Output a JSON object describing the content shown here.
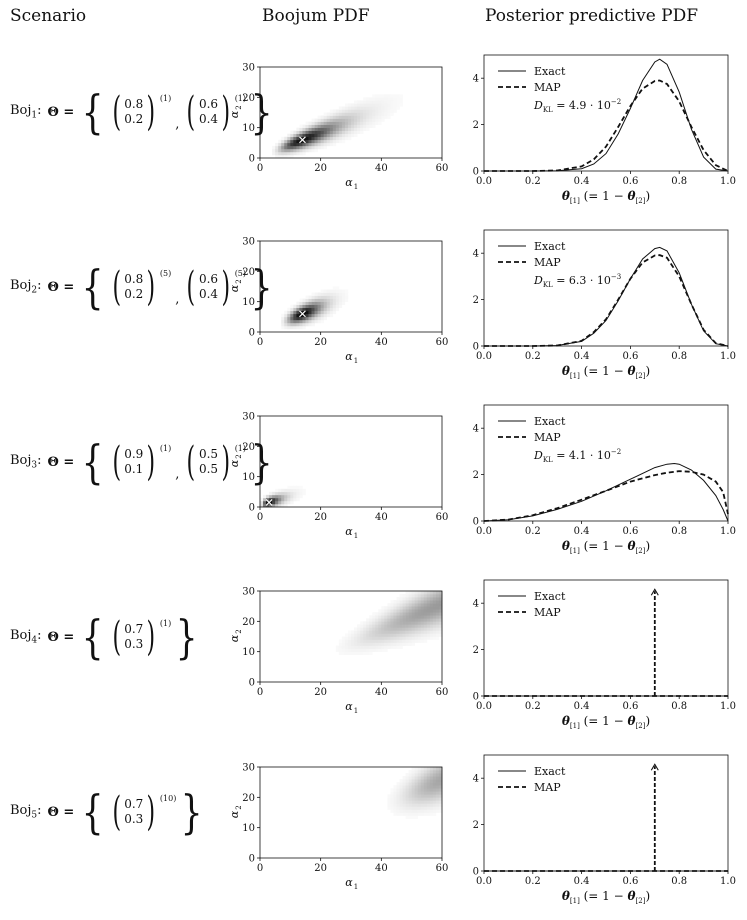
{
  "headers": {
    "scenario": "Scenario",
    "boojum": "Boojum PDF",
    "posterior": "Posterior predictive PDF"
  },
  "axes_text": {
    "heat_xlabel": "α",
    "heat_xsub": "1",
    "heat_ylabel": "α",
    "heat_ysub": "2",
    "post_xlabel_theta": "θ",
    "post_xlabel_sub": "[1]",
    "post_xlabel_mid": "(= 1 − ",
    "post_xlabel_end": ")",
    "post_xlabel_sub2": "[2]",
    "legend_exact": "Exact",
    "legend_map": "MAP"
  },
  "scenarios": [
    {
      "label": "Boj",
      "sub": "1",
      "theta": "Θ =",
      "vectors": [
        {
          "a": "0.8",
          "b": "0.2",
          "pow": "(1)"
        },
        {
          "a": "0.6",
          "b": "0.4",
          "pow": "(1)"
        }
      ]
    },
    {
      "label": "Boj",
      "sub": "2",
      "theta": "Θ =",
      "vectors": [
        {
          "a": "0.8",
          "b": "0.2",
          "pow": "(5)"
        },
        {
          "a": "0.6",
          "b": "0.4",
          "pow": "(5)"
        }
      ]
    },
    {
      "label": "Boj",
      "sub": "3",
      "theta": "Θ =",
      "vectors": [
        {
          "a": "0.9",
          "b": "0.1",
          "pow": "(1)"
        },
        {
          "a": "0.5",
          "b": "0.5",
          "pow": "(1)"
        }
      ]
    },
    {
      "label": "Boj",
      "sub": "4",
      "theta": "Θ =",
      "vectors": [
        {
          "a": "0.7",
          "b": "0.3",
          "pow": "(1)"
        }
      ]
    },
    {
      "label": "Boj",
      "sub": "5",
      "theta": "Θ =",
      "vectors": [
        {
          "a": "0.7",
          "b": "0.3",
          "pow": "(10)"
        }
      ]
    }
  ],
  "chart_data": [
    {
      "type": "heatmap",
      "xlim": [
        0,
        60
      ],
      "ylim": [
        0,
        30
      ],
      "xticks": [
        0,
        20,
        40,
        60
      ],
      "yticks": [
        0,
        10,
        20,
        30
      ],
      "map_marker": [
        14,
        6
      ],
      "ridge_slope": 0.4,
      "ridge_intercept": 0.4,
      "peak": [
        14,
        6
      ],
      "spread": 0.42,
      "intensity": 0.95
    },
    {
      "type": "heatmap",
      "xlim": [
        0,
        60
      ],
      "ylim": [
        0,
        30
      ],
      "xticks": [
        0,
        20,
        40,
        60
      ],
      "yticks": [
        0,
        10,
        20,
        30
      ],
      "map_marker": [
        14,
        6
      ],
      "ridge_slope": 0.4,
      "ridge_intercept": 0.4,
      "peak": [
        14,
        6
      ],
      "spread": 0.25,
      "intensity": 1.0
    },
    {
      "type": "heatmap",
      "xlim": [
        0,
        60
      ],
      "ylim": [
        0,
        30
      ],
      "xticks": [
        0,
        20,
        40,
        60
      ],
      "yticks": [
        0,
        10,
        20,
        30
      ],
      "map_marker": [
        3,
        1.5
      ],
      "ridge_slope": 0.3,
      "ridge_intercept": 0.7,
      "peak": [
        3,
        1.5
      ],
      "spread": 0.5,
      "intensity": 1.0
    },
    {
      "type": "heatmap",
      "xlim": [
        0,
        60
      ],
      "ylim": [
        0,
        30
      ],
      "xticks": [
        0,
        20,
        40,
        60
      ],
      "yticks": [
        0,
        10,
        20,
        30
      ],
      "map_marker": null,
      "ridge_slope": 0.43,
      "ridge_intercept": 0,
      "peak": [
        60,
        26
      ],
      "spread": 0.35,
      "intensity": 0.4
    },
    {
      "type": "heatmap",
      "xlim": [
        0,
        60
      ],
      "ylim": [
        0,
        30
      ],
      "xticks": [
        0,
        20,
        40,
        60
      ],
      "yticks": [
        0,
        10,
        20,
        30
      ],
      "map_marker": null,
      "ridge_slope": 0.43,
      "ridge_intercept": 0,
      "peak": [
        60,
        26
      ],
      "spread": 0.15,
      "intensity": 0.35
    },
    {
      "type": "line",
      "xlim": [
        0,
        1
      ],
      "ylim": [
        0,
        5
      ],
      "xticks": [
        0.0,
        0.2,
        0.4,
        0.6,
        0.8,
        1.0
      ],
      "yticks": [
        0,
        2,
        4
      ],
      "dkl": "D",
      "dkl_sub": "KL",
      "dkl_value": "= 4.9 · 10",
      "dkl_exp": "−2",
      "x": [
        0.0,
        0.1,
        0.2,
        0.3,
        0.4,
        0.45,
        0.5,
        0.55,
        0.6,
        0.65,
        0.7,
        0.72,
        0.75,
        0.8,
        0.85,
        0.9,
        0.95,
        1.0
      ],
      "series": [
        {
          "name": "Exact",
          "style": "solid",
          "values": [
            0,
            0,
            0,
            0.01,
            0.1,
            0.3,
            0.75,
            1.6,
            2.7,
            3.9,
            4.7,
            4.82,
            4.6,
            3.4,
            1.8,
            0.6,
            0.08,
            0
          ]
        },
        {
          "name": "MAP",
          "style": "dashed",
          "values": [
            0,
            0,
            0,
            0.02,
            0.2,
            0.5,
            1.05,
            1.9,
            2.8,
            3.55,
            3.88,
            3.9,
            3.75,
            3.0,
            1.9,
            0.9,
            0.25,
            0
          ]
        }
      ]
    },
    {
      "type": "line",
      "xlim": [
        0,
        1
      ],
      "ylim": [
        0,
        5
      ],
      "xticks": [
        0.0,
        0.2,
        0.4,
        0.6,
        0.8,
        1.0
      ],
      "yticks": [
        0,
        2,
        4
      ],
      "dkl": "D",
      "dkl_sub": "KL",
      "dkl_value": "= 6.3 · 10",
      "dkl_exp": "−3",
      "x": [
        0.0,
        0.1,
        0.2,
        0.3,
        0.4,
        0.45,
        0.5,
        0.55,
        0.6,
        0.65,
        0.7,
        0.72,
        0.75,
        0.8,
        0.85,
        0.9,
        0.95,
        1.0
      ],
      "series": [
        {
          "name": "Exact",
          "style": "solid",
          "values": [
            0,
            0,
            0,
            0.02,
            0.2,
            0.55,
            1.1,
            1.95,
            2.9,
            3.75,
            4.2,
            4.25,
            4.1,
            3.15,
            1.8,
            0.65,
            0.1,
            0
          ]
        },
        {
          "name": "MAP",
          "style": "dashed",
          "values": [
            0,
            0,
            0,
            0.02,
            0.22,
            0.6,
            1.15,
            2.0,
            2.9,
            3.6,
            3.9,
            3.92,
            3.8,
            3.0,
            1.8,
            0.7,
            0.12,
            0
          ]
        }
      ]
    },
    {
      "type": "line",
      "xlim": [
        0,
        1
      ],
      "ylim": [
        0,
        5
      ],
      "xticks": [
        0.0,
        0.2,
        0.4,
        0.6,
        0.8,
        1.0
      ],
      "yticks": [
        0,
        2,
        4
      ],
      "dkl": "D",
      "dkl_sub": "KL",
      "dkl_value": "= 4.1 · 10",
      "dkl_exp": "−2",
      "x": [
        0.0,
        0.1,
        0.2,
        0.3,
        0.4,
        0.5,
        0.6,
        0.7,
        0.75,
        0.78,
        0.8,
        0.85,
        0.9,
        0.95,
        0.98,
        1.0
      ],
      "series": [
        {
          "name": "Exact",
          "style": "solid",
          "values": [
            0,
            0.05,
            0.22,
            0.5,
            0.85,
            1.3,
            1.8,
            2.3,
            2.45,
            2.48,
            2.45,
            2.2,
            1.75,
            1.1,
            0.5,
            0
          ]
        },
        {
          "name": "MAP",
          "style": "dashed",
          "values": [
            0,
            0.06,
            0.25,
            0.55,
            0.92,
            1.3,
            1.7,
            1.98,
            2.08,
            2.12,
            2.15,
            2.12,
            2.0,
            1.7,
            1.25,
            0.3
          ]
        }
      ]
    },
    {
      "type": "line",
      "xlim": [
        0,
        1
      ],
      "ylim": [
        0,
        5
      ],
      "xticks": [
        0.0,
        0.2,
        0.4,
        0.6,
        0.8,
        1.0
      ],
      "yticks": [
        0,
        2,
        4
      ],
      "x": [
        0.0,
        1.0
      ],
      "series": [
        {
          "name": "Exact",
          "style": "solid",
          "values": [
            0,
            0
          ]
        },
        {
          "name": "MAP",
          "style": "dashed",
          "values": [
            0,
            0
          ]
        }
      ],
      "delta_at": 0.7,
      "delta_height": 4.6
    },
    {
      "type": "line",
      "xlim": [
        0,
        1
      ],
      "ylim": [
        0,
        5
      ],
      "xticks": [
        0.0,
        0.2,
        0.4,
        0.6,
        0.8,
        1.0
      ],
      "yticks": [
        0,
        2,
        4
      ],
      "x": [
        0.0,
        1.0
      ],
      "series": [
        {
          "name": "Exact",
          "style": "solid",
          "values": [
            0,
            0
          ]
        },
        {
          "name": "MAP",
          "style": "dashed",
          "values": [
            0,
            0
          ]
        }
      ],
      "delta_at": 0.7,
      "delta_height": 4.6
    }
  ]
}
